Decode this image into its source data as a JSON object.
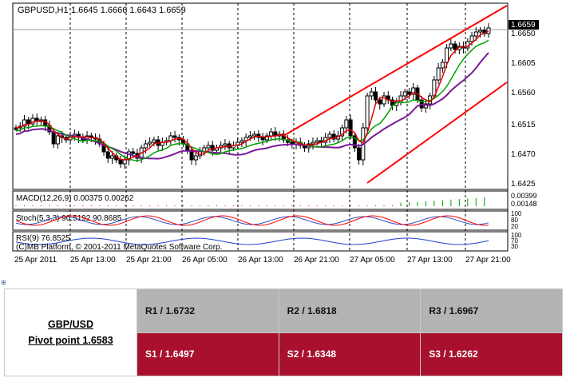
{
  "chart": {
    "header": {
      "symbol": "GBPUSD,H1",
      "ohlc": "1.6645 1.6666 1.6643 1.6659"
    },
    "current_price_tag": "1.6659",
    "price_axis_labels": [
      "1.6650",
      "1.6605",
      "1.6560",
      "1.6515",
      "1.6470",
      "1.6425"
    ],
    "macd": {
      "label": "MACD(12,26,9) 0.00375 0.00262",
      "axis_labels": [
        "0.00399",
        "0.00148"
      ]
    },
    "stoch": {
      "label": "Stoch(5,3,3) 90.5192 90.8685",
      "axis_labels": [
        "100",
        "80",
        "20"
      ]
    },
    "rsi": {
      "label": "RSI(9) 76.8525",
      "axis_labels": [
        "100",
        "70",
        "30"
      ]
    },
    "copyright": "(C)MB Platform, © 2001-2011 MetaQuotes Software Corp.",
    "time_labels": [
      "25 Apr 2011",
      "25 Apr 13:00",
      "25 Apr 21:00",
      "26 Apr 05:00",
      "26 Apr 13:00",
      "26 Apr 21:00",
      "27 Apr 05:00",
      "27 Apr 13:00",
      "27 Apr 21:00"
    ],
    "colors": {
      "bull_candle": "#ffffff",
      "bear_candle": "#000000",
      "ma_fast": "#e00000",
      "ma_mid": "#00a000",
      "ma_slow": "#7a1a9a",
      "channel": "#ff0000",
      "stoch_main": "#ff0000",
      "stoch_signal": "#3050c0",
      "rsi": "#2040d0",
      "macd_hist": "#00a000",
      "macd_signal": "#ff0000"
    }
  },
  "pivot_table": {
    "pair": "GBP/USD",
    "pivot_label": "Pivot point 1.6583",
    "resistance": [
      "R1 / 1.6732",
      "R2 / 1.6818",
      "R3 / 1.6967"
    ],
    "support": [
      "S1 / 1.6497",
      "S2 / 1.6348",
      "S3 / 1.6262"
    ],
    "colors": {
      "resistance_bg": "#b4b4b4",
      "support_bg": "#a8102e"
    }
  }
}
